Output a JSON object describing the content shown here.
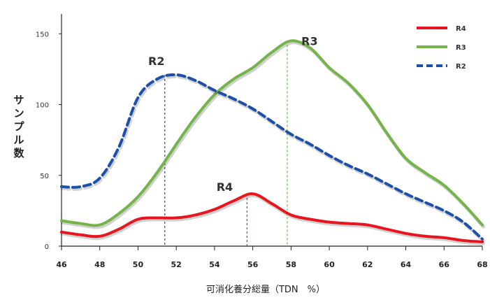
{
  "chart_data": {
    "type": "line",
    "title": "",
    "xlabel": "可消化養分総量（TDN　%）",
    "ylabel": "サンプル数",
    "xlim": [
      46,
      68
    ],
    "ylim": [
      0,
      160
    ],
    "xticks": [
      46,
      48,
      50,
      52,
      54,
      56,
      58,
      60,
      62,
      64,
      66,
      68
    ],
    "yticks": [
      0,
      50,
      100,
      150
    ],
    "grid": false,
    "legend_position": "top-right",
    "series": [
      {
        "name": "R4",
        "color": "#e8141e",
        "dash": "solid",
        "points": [
          [
            46,
            10
          ],
          [
            47,
            8
          ],
          [
            48,
            7
          ],
          [
            49,
            12
          ],
          [
            50,
            19
          ],
          [
            51,
            20
          ],
          [
            52,
            20
          ],
          [
            53,
            22
          ],
          [
            54,
            26
          ],
          [
            55,
            32
          ],
          [
            56,
            37
          ],
          [
            57,
            30
          ],
          [
            58,
            22
          ],
          [
            59,
            19
          ],
          [
            60,
            17
          ],
          [
            61,
            16
          ],
          [
            62,
            15
          ],
          [
            63,
            12
          ],
          [
            64,
            9
          ],
          [
            65,
            7
          ],
          [
            66,
            6
          ],
          [
            67,
            4
          ],
          [
            68,
            3
          ]
        ]
      },
      {
        "name": "R3",
        "color": "#74b44a",
        "dash": "solid",
        "points": [
          [
            46,
            18
          ],
          [
            47,
            16
          ],
          [
            48,
            15
          ],
          [
            49,
            23
          ],
          [
            50,
            35
          ],
          [
            51,
            52
          ],
          [
            52,
            72
          ],
          [
            53,
            91
          ],
          [
            54,
            107
          ],
          [
            55,
            118
          ],
          [
            56,
            126
          ],
          [
            57,
            137
          ],
          [
            58,
            145
          ],
          [
            59,
            140
          ],
          [
            60,
            126
          ],
          [
            61,
            115
          ],
          [
            62,
            100
          ],
          [
            63,
            80
          ],
          [
            64,
            62
          ],
          [
            65,
            52
          ],
          [
            66,
            43
          ],
          [
            67,
            30
          ],
          [
            68,
            15
          ]
        ]
      },
      {
        "name": "R2",
        "color": "#1e4fa8",
        "dash": "dashed",
        "points": [
          [
            46,
            42
          ],
          [
            47,
            42
          ],
          [
            48,
            48
          ],
          [
            49,
            70
          ],
          [
            50,
            105
          ],
          [
            51,
            118
          ],
          [
            52,
            121
          ],
          [
            53,
            117
          ],
          [
            54,
            110
          ],
          [
            55,
            104
          ],
          [
            56,
            97
          ],
          [
            57,
            88
          ],
          [
            58,
            79
          ],
          [
            59,
            72
          ],
          [
            60,
            64
          ],
          [
            61,
            57
          ],
          [
            62,
            51
          ],
          [
            63,
            44
          ],
          [
            64,
            37
          ],
          [
            65,
            31
          ],
          [
            66,
            25
          ],
          [
            67,
            17
          ],
          [
            68,
            5
          ]
        ]
      }
    ],
    "annotations": [
      {
        "label": "R2",
        "x": 51.4,
        "y": 121,
        "color": "#1e4fa8"
      },
      {
        "label": "R3",
        "x": 57.8,
        "y": 145,
        "color": "#74b44a"
      },
      {
        "label": "R4",
        "x": 55.7,
        "y": 37,
        "color": "#e8141e"
      }
    ]
  }
}
